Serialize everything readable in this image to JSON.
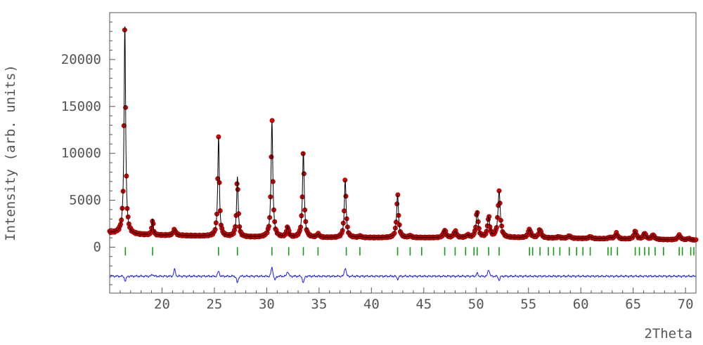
{
  "chart_data": {
    "type": "line",
    "title": "",
    "xlabel": "2Theta",
    "ylabel": "Intensity (arb. units)",
    "xlim": [
      15,
      71
    ],
    "ylim": [
      -4900,
      25000
    ],
    "x_ticks": [
      20,
      25,
      30,
      35,
      40,
      45,
      50,
      55,
      60,
      65,
      70
    ],
    "y_ticks": [
      0,
      5000,
      10000,
      15000,
      20000
    ],
    "grid": false,
    "legend": "none",
    "background": 1000,
    "colors": {
      "observed": "#e00000",
      "observed_edge": "#7a0000",
      "calculated": "#000000",
      "bragg": "#139b13",
      "difference": "#1a1aff",
      "axis": "#555555"
    },
    "series": [
      {
        "role": "calculated",
        "style": "line",
        "peaks": [
          {
            "x": 16.45,
            "h": 22200,
            "w": 0.09
          },
          {
            "x": 19.1,
            "h": 1700,
            "w": 0.08
          },
          {
            "x": 21.2,
            "h": 600,
            "w": 0.15
          },
          {
            "x": 25.4,
            "h": 10600,
            "w": 0.09
          },
          {
            "x": 27.2,
            "h": 6400,
            "w": 0.09
          },
          {
            "x": 30.5,
            "h": 12300,
            "w": 0.1
          },
          {
            "x": 32.0,
            "h": 1100,
            "w": 0.12
          },
          {
            "x": 33.5,
            "h": 9100,
            "w": 0.1
          },
          {
            "x": 34.9,
            "h": 350,
            "w": 0.15
          },
          {
            "x": 37.5,
            "h": 6100,
            "w": 0.1
          },
          {
            "x": 38.9,
            "h": 150,
            "w": 0.15
          },
          {
            "x": 42.5,
            "h": 4600,
            "w": 0.11
          },
          {
            "x": 43.7,
            "h": 200,
            "w": 0.15
          },
          {
            "x": 47.0,
            "h": 800,
            "w": 0.14
          },
          {
            "x": 48.0,
            "h": 700,
            "w": 0.14
          },
          {
            "x": 49.2,
            "h": 250,
            "w": 0.14
          },
          {
            "x": 50.1,
            "h": 2800,
            "w": 0.12
          },
          {
            "x": 51.2,
            "h": 2200,
            "w": 0.12
          },
          {
            "x": 52.2,
            "h": 4900,
            "w": 0.13
          },
          {
            "x": 55.1,
            "h": 900,
            "w": 0.14
          },
          {
            "x": 56.1,
            "h": 900,
            "w": 0.14
          },
          {
            "x": 57.9,
            "h": 150,
            "w": 0.15
          },
          {
            "x": 58.9,
            "h": 250,
            "w": 0.15
          },
          {
            "x": 60.9,
            "h": 200,
            "w": 0.15
          },
          {
            "x": 62.8,
            "h": 150,
            "w": 0.15
          },
          {
            "x": 63.4,
            "h": 600,
            "w": 0.14
          },
          {
            "x": 65.2,
            "h": 850,
            "w": 0.14
          },
          {
            "x": 66.1,
            "h": 650,
            "w": 0.14
          },
          {
            "x": 66.9,
            "h": 500,
            "w": 0.14
          },
          {
            "x": 69.4,
            "h": 500,
            "w": 0.15
          },
          {
            "x": 70.3,
            "h": 150,
            "w": 0.15
          }
        ]
      },
      {
        "role": "observed",
        "style": "scatter"
      },
      {
        "role": "bragg_positions",
        "style": "ticks",
        "x": [
          16.5,
          19.1,
          25.4,
          27.2,
          30.5,
          32.1,
          33.5,
          34.9,
          37.6,
          38.9,
          42.5,
          43.7,
          44.8,
          47.0,
          48.0,
          49.0,
          49.8,
          50.1,
          51.2,
          52.2,
          55.1,
          55.4,
          56.1,
          56.9,
          57.4,
          58.0,
          58.9,
          59.6,
          60.2,
          60.9,
          62.6,
          62.9,
          63.5,
          65.2,
          65.6,
          66.1,
          66.5,
          67.1,
          67.9,
          69.4,
          69.7,
          70.5,
          70.8
        ],
        "y": -450
      },
      {
        "role": "difference",
        "style": "line",
        "offset": -3100,
        "features": [
          {
            "x": 16.5,
            "amp": -500
          },
          {
            "x": 19.1,
            "amp": 200
          },
          {
            "x": 21.2,
            "amp": 700
          },
          {
            "x": 25.4,
            "amp": 500
          },
          {
            "x": 27.2,
            "amp": -700
          },
          {
            "x": 30.5,
            "amp": 900
          },
          {
            "x": 30.8,
            "amp": -400
          },
          {
            "x": 32.0,
            "amp": 500
          },
          {
            "x": 33.5,
            "amp": -700
          },
          {
            "x": 37.5,
            "amp": 900
          },
          {
            "x": 42.5,
            "amp": -300
          },
          {
            "x": 50.1,
            "amp": 300
          },
          {
            "x": 51.2,
            "amp": 700
          },
          {
            "x": 52.2,
            "amp": -400
          }
        ]
      }
    ]
  }
}
